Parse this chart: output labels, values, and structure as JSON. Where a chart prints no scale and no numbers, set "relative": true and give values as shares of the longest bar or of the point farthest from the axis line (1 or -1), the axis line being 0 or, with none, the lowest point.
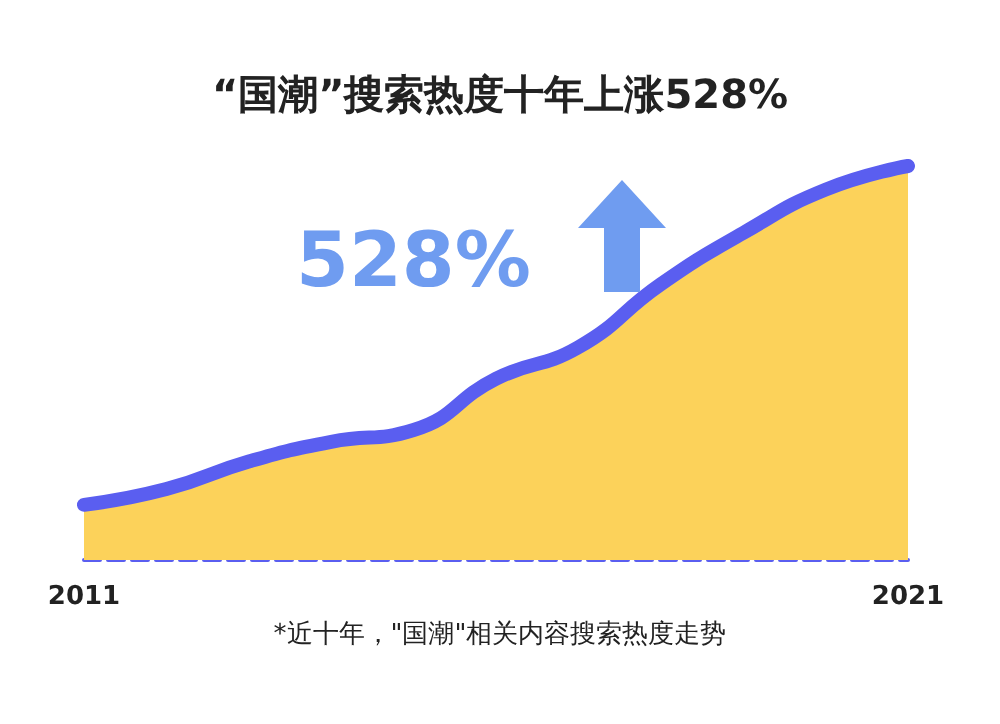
{
  "chart_data": {
    "type": "area",
    "title": "“国潮”搜索热度十年上涨528%",
    "relative": true,
    "categories": [
      "2011",
      null,
      null,
      null,
      null,
      null,
      null,
      null,
      null,
      null,
      "2021"
    ],
    "series": [
      {
        "color": "#fcd25a",
        "values": [
          0.14,
          0.18,
          0.25,
          0.3,
          0.33,
          0.46,
          0.54,
          0.7,
          0.83,
          0.94,
          1
        ]
      },
      {
        "type": "line",
        "color": "#5a5ef0",
        "values": [
          0.14,
          0.18,
          0.25,
          0.3,
          0.33,
          0.46,
          0.54,
          0.7,
          0.83,
          0.94,
          1
        ]
      }
    ],
    "annotations": [
      "528%",
      "*近十年，\"国潮\"相关内容搜索热度走势"
    ],
    "grid": false,
    "line_style": "solid"
  }
}
